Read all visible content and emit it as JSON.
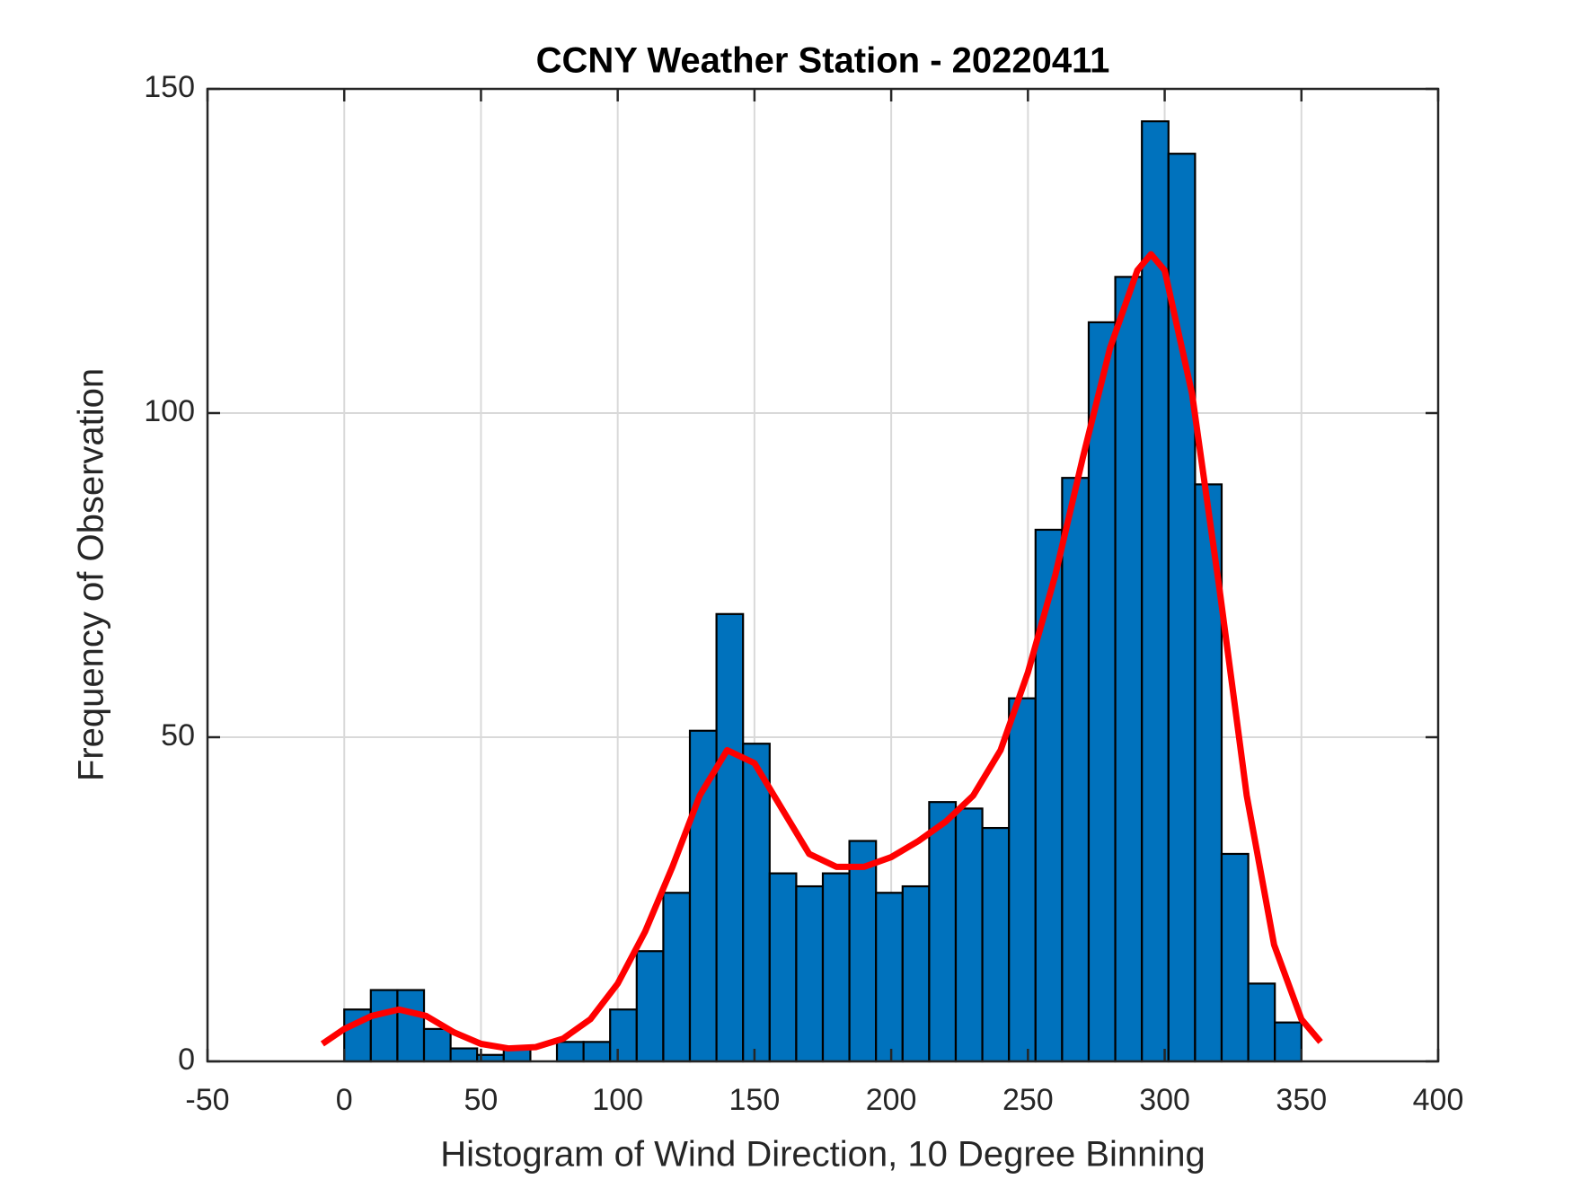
{
  "chart_data": {
    "type": "histogram",
    "title": "CCNY Weather Station - 20220411",
    "x_label": "Histogram of Wind Direction, 10 Degree Binning",
    "y_label": "Frequency of Observation",
    "bins": [
      0,
      9.72,
      19.44,
      29.17,
      38.89,
      48.61,
      58.33,
      68.06,
      77.78,
      87.5,
      97.22,
      106.94,
      116.67,
      126.39,
      136.11,
      145.83,
      155.56,
      165.28,
      175,
      184.72,
      194.44,
      204.17,
      213.89,
      223.61,
      233.33,
      243.06,
      252.78,
      262.5,
      272.22,
      281.94,
      291.67,
      301.39,
      311.11,
      320.83,
      330.56,
      340.28,
      350
    ],
    "counts": [
      8,
      11,
      11,
      5,
      2,
      1,
      2,
      0,
      3,
      3,
      8,
      17,
      26,
      51,
      69,
      49,
      29,
      27,
      29,
      34,
      26,
      27,
      40,
      39,
      36,
      56,
      82,
      90,
      114,
      121,
      145,
      140,
      89,
      32,
      12,
      6
    ],
    "color": "#0072bd",
    "edge_color": "#000000",
    "series": [
      {
        "type": "line",
        "color": "#ff0000",
        "x": [
          -8,
          0,
          10,
          20,
          30,
          40,
          50,
          60,
          70,
          80,
          90,
          100,
          110,
          120,
          130,
          140,
          150,
          160,
          170,
          180,
          190,
          200,
          210,
          220,
          230,
          240,
          250,
          260,
          270,
          280,
          290,
          295,
          300,
          310,
          320,
          330,
          340,
          350,
          357
        ],
        "values": [
          2.7,
          5,
          7,
          8,
          7,
          4.5,
          2.7,
          2,
          2.2,
          3.5,
          6.5,
          12,
          20,
          30,
          41,
          48,
          46,
          39,
          32,
          30,
          30,
          31.5,
          34,
          37,
          41,
          48,
          60,
          75,
          93,
          110,
          122,
          124.5,
          122,
          103,
          73,
          41,
          18,
          6.5,
          3
        ]
      }
    ],
    "xlim": [
      -50,
      400
    ],
    "ylim": [
      0,
      150
    ],
    "xticks": [
      -50,
      0,
      50,
      100,
      150,
      200,
      250,
      300,
      350,
      400
    ],
    "yticks": [
      0,
      50,
      100,
      150
    ],
    "grid": true
  }
}
